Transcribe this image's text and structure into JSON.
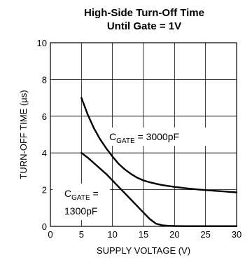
{
  "chart_data": {
    "type": "line",
    "title_lines": [
      "High-Side Turn-Off Time",
      "Until Gate = 1V"
    ],
    "xlabel": "SUPPLY VOLTAGE (V)",
    "ylabel": "TURN-OFF TIME (µs)",
    "xlim": [
      0,
      30
    ],
    "ylim": [
      0,
      10
    ],
    "xticks": [
      0,
      5,
      10,
      15,
      20,
      25,
      30
    ],
    "yticks": [
      0,
      2,
      4,
      6,
      8,
      10
    ],
    "grid": true,
    "series": [
      {
        "name": "3000pF",
        "x": [
          5,
          6,
          7,
          8,
          9,
          10,
          11,
          12,
          13,
          14,
          15,
          16,
          17,
          18,
          20,
          22,
          24,
          26,
          28,
          30
        ],
        "values": [
          7.0,
          6.1,
          5.35,
          4.75,
          4.25,
          3.8,
          3.4,
          3.1,
          2.85,
          2.65,
          2.5,
          2.4,
          2.32,
          2.25,
          2.15,
          2.07,
          2.0,
          1.95,
          1.9,
          1.85
        ]
      },
      {
        "name": "1300pF",
        "x": [
          5,
          6,
          7,
          8,
          9,
          10,
          11,
          12,
          13,
          14,
          15,
          16,
          17,
          18,
          19,
          20,
          22,
          24,
          26,
          28,
          30
        ],
        "values": [
          4.0,
          3.75,
          3.45,
          3.15,
          2.85,
          2.5,
          2.15,
          1.8,
          1.45,
          1.1,
          0.75,
          0.4,
          0.15,
          0.06,
          0.03,
          0.02,
          0.01,
          0.01,
          0.01,
          0.01,
          0.01
        ]
      }
    ],
    "annotations": [
      {
        "main": "C",
        "sub": "GATE",
        "rest": " = 3000pF"
      },
      {
        "main": "C",
        "sub": "GATE",
        "rest": " =",
        "line2": "1300pF"
      }
    ]
  }
}
